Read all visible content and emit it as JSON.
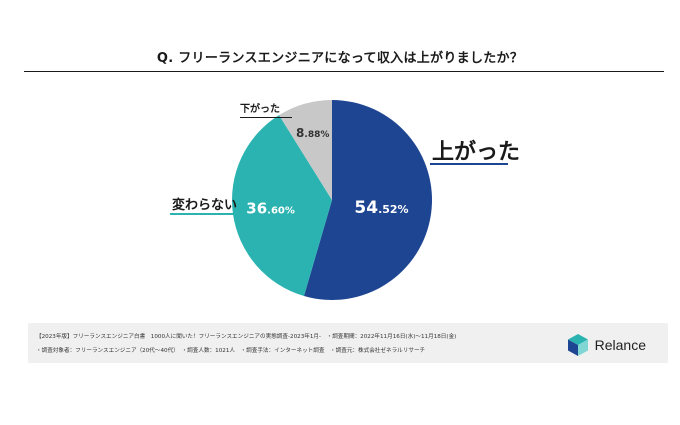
{
  "title": "Q. フリーランスエンジニアになって収入は上がりましたか？",
  "chart_data": {
    "type": "pie",
    "title": "Q. フリーランスエンジニアになって収入は上がりましたか？",
    "slices": [
      {
        "name": "上がった",
        "value": 54.52,
        "int": "54",
        "dec": ".52%",
        "color": "#1e4592"
      },
      {
        "name": "変わらない",
        "value": 36.6,
        "int": "36",
        "dec": ".60%",
        "color": "#2ab3b1"
      },
      {
        "name": "下がった",
        "value": 8.88,
        "int": "8",
        "dec": ".88%",
        "color": "#c8c8c8"
      }
    ]
  },
  "footer": {
    "line1": "【2023年版】フリーランスエンジニア白書　1000人に聞いた！フリーランスエンジニアの実態調査-2023年1月-　・調査期間：2022年11月16日(水)〜11月18日(金)",
    "line2": "・調査対象者：フリーランスエンジニア（20代〜40代）　・調査人数：1021人　・調査手法：インターネット調査　・調査元：株式会社ゼネラルリサーチ",
    "brand": "Relance",
    "logo_colors": {
      "top": "#2ab3b1",
      "left": "#1e4592",
      "right": "#7fd6d3"
    }
  }
}
